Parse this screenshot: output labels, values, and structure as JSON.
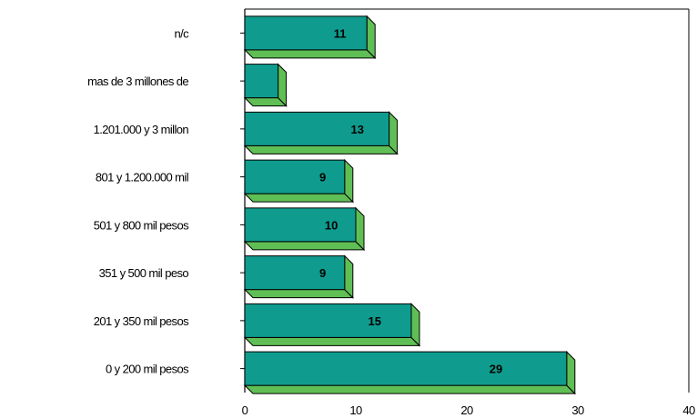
{
  "chart_data": {
    "type": "bar",
    "orientation": "horizontal",
    "categories": [
      "n/c",
      "mas de 3 millones de",
      "1.201.000 y 3 millon",
      "801 y 1.200.000 mil",
      "501 y 800 mil pesos",
      "351 y 500 mil peso",
      "201 y 350 mil pesos",
      "0 y 200 mil pesos"
    ],
    "values": [
      11,
      3,
      13,
      9,
      10,
      9,
      15,
      29
    ],
    "data_labels": [
      "11",
      "",
      "13",
      "9",
      "10",
      "9",
      "15",
      "29"
    ],
    "xlim": [
      0,
      40
    ],
    "xticks": [
      "0",
      "10",
      "20",
      "30",
      "40"
    ],
    "title": "",
    "xlabel": "",
    "ylabel": "",
    "grid": false,
    "legend": "none",
    "colors": {
      "bar_face": "#0f9c8e",
      "bar_side": "#5fbf55",
      "outline": "#000000"
    }
  }
}
